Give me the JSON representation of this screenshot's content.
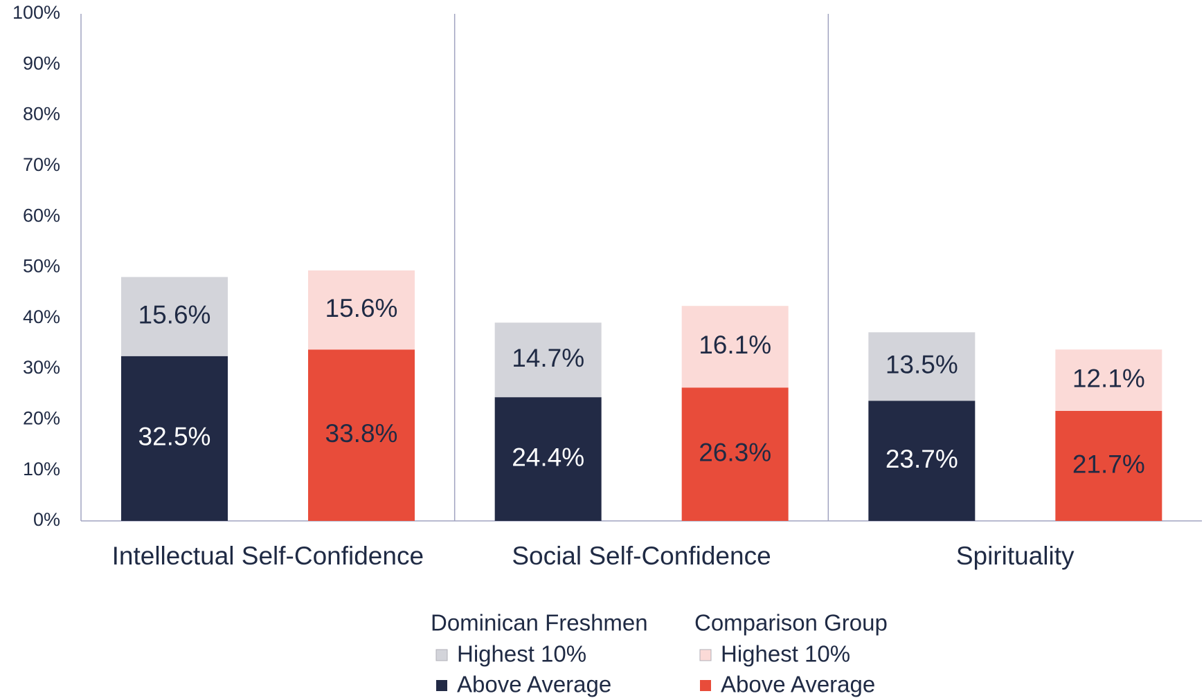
{
  "chart_data": {
    "type": "stacked_bar",
    "categories": [
      "Intellectual Self-Confidence",
      "Social Self-Confidence",
      "Spirituality"
    ],
    "ylim": [
      0,
      100
    ],
    "yticks": [
      {
        "value": 0,
        "label": "0%"
      },
      {
        "value": 10,
        "label": "10%"
      },
      {
        "value": 20,
        "label": "20%"
      },
      {
        "value": 30,
        "label": "30%"
      },
      {
        "value": 40,
        "label": "40%"
      },
      {
        "value": 50,
        "label": "50%"
      },
      {
        "value": 60,
        "label": "60%"
      },
      {
        "value": 70,
        "label": "70%"
      },
      {
        "value": 80,
        "label": "80%"
      },
      {
        "value": 90,
        "label": "90%"
      },
      {
        "value": 100,
        "label": "100%"
      }
    ],
    "groups": [
      {
        "name": "Dominican Freshmen",
        "series": [
          {
            "name": "Highest 10%",
            "color": "#d3d4da",
            "label_color": "#1f2a44",
            "values": [
              15.6,
              14.7,
              13.5
            ],
            "value_labels": [
              "15.6%",
              "14.7%",
              "13.5%"
            ]
          },
          {
            "name": "Above Average",
            "color": "#222a45",
            "label_color": "#ffffff",
            "values": [
              32.5,
              24.4,
              23.7
            ],
            "value_labels": [
              "32.5%",
              "24.4%",
              "23.7%"
            ]
          }
        ]
      },
      {
        "name": "Comparison Group",
        "series": [
          {
            "name": "Highest 10%",
            "color": "#fbdad7",
            "label_color": "#1f2a44",
            "values": [
              15.6,
              16.1,
              12.1
            ],
            "value_labels": [
              "15.6%",
              "16.1%",
              "12.1%"
            ]
          },
          {
            "name": "Above Average",
            "color": "#e84c3a",
            "label_color": "#1f2a44",
            "values": [
              33.8,
              26.3,
              21.7
            ],
            "value_labels": [
              "33.8%",
              "26.3%",
              "21.7%"
            ]
          }
        ]
      }
    ]
  }
}
